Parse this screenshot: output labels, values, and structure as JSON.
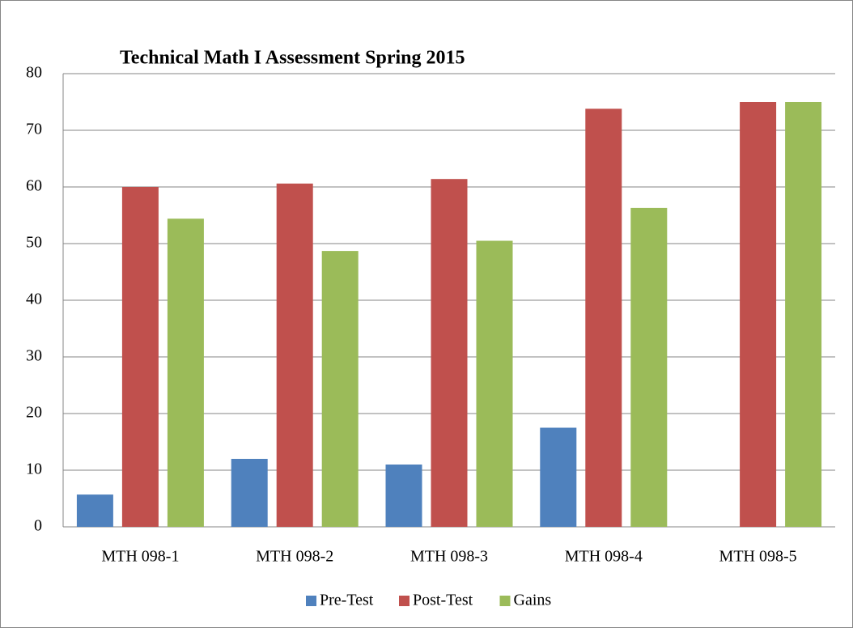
{
  "chart_data": {
    "type": "bar",
    "title": "Technical Math I Assessment Spring 2015",
    "categories": [
      "MTH 098-1",
      "MTH 098-2",
      "MTH 098-3",
      "MTH 098-4",
      "MTH 098-5"
    ],
    "series": [
      {
        "name": "Pre-Test",
        "color": "#4f81bd",
        "values": [
          5.7,
          12,
          11,
          17.5,
          0
        ]
      },
      {
        "name": "Post-Test",
        "color": "#c0504d",
        "values": [
          60,
          60.6,
          61.4,
          73.8,
          75
        ]
      },
      {
        "name": "Gains",
        "color": "#9bbb59",
        "values": [
          54.4,
          48.7,
          50.5,
          56.3,
          75
        ]
      }
    ],
    "ylim": [
      0,
      80
    ],
    "yticks": [
      0,
      10,
      20,
      30,
      40,
      50,
      60,
      70,
      80
    ],
    "grid": true,
    "legend": "bottom"
  }
}
